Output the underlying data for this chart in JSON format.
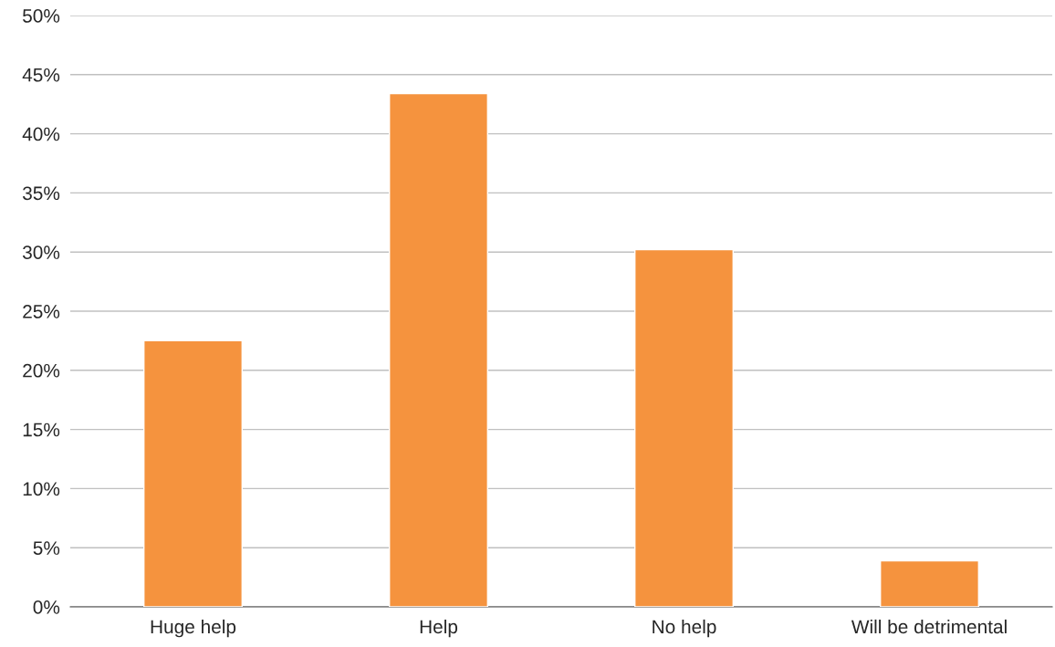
{
  "chart_data": {
    "type": "bar",
    "categories": [
      "Huge help",
      "Help",
      "No help",
      "Will be detrimental"
    ],
    "values": [
      22.5,
      43.4,
      30.2,
      3.9
    ],
    "color": "#f5933e",
    "ylim": [
      0,
      50
    ],
    "yticks": [
      {
        "value": 0,
        "label": "0%"
      },
      {
        "value": 5,
        "label": "5%"
      },
      {
        "value": 10,
        "label": "10%"
      },
      {
        "value": 15,
        "label": "15%"
      },
      {
        "value": 20,
        "label": "20%"
      },
      {
        "value": 25,
        "label": "25%"
      },
      {
        "value": 30,
        "label": "30%"
      },
      {
        "value": 35,
        "label": "35%"
      },
      {
        "value": 40,
        "label": "40%"
      },
      {
        "value": 45,
        "label": "45%"
      },
      {
        "value": 50,
        "label": "50%"
      }
    ],
    "grid": "y",
    "legend": false
  }
}
